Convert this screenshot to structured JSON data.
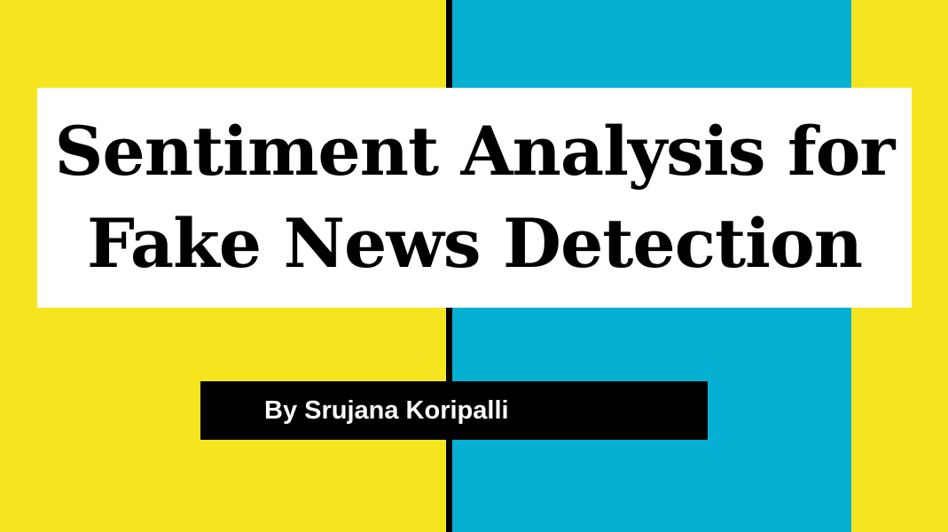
{
  "slide": {
    "title_line1": "Sentiment Analysis for",
    "title_line2": "Fake News Detection",
    "subtitle": "By Srujana Koripalli"
  },
  "colors": {
    "yellow": "#f5e51f",
    "blue": "#05b0d3",
    "black": "#000000",
    "white": "#ffffff"
  }
}
